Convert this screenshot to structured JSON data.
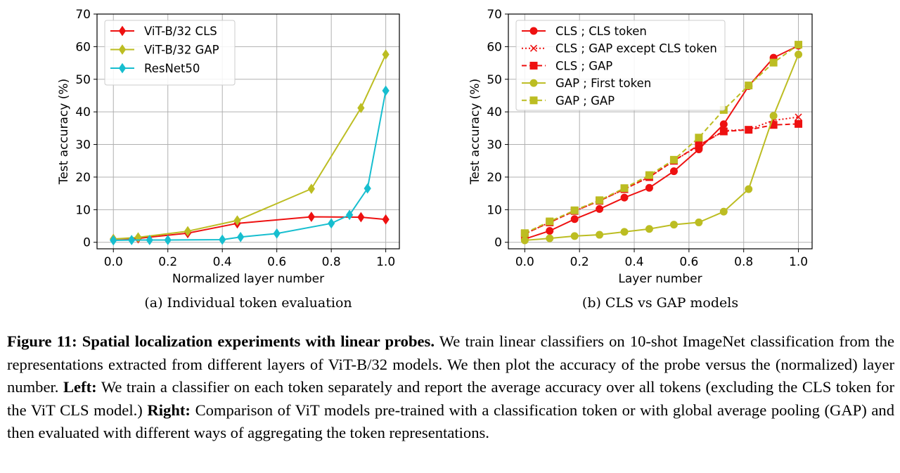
{
  "colors": {
    "red": "#ee1111",
    "olive": "#bcbd22",
    "cyan": "#17becf",
    "grid": "#b0b0b0",
    "axis": "#000000"
  },
  "chart_data": [
    {
      "type": "line",
      "subcaption": "(a) Individual token evaluation",
      "xlabel": "Normalized layer number",
      "ylabel": "Test accuracy (%)",
      "xlim": [
        -0.06,
        1.05
      ],
      "ylim": [
        -2,
        70
      ],
      "xticks": [
        0.0,
        0.2,
        0.4,
        0.6,
        0.8,
        1.0
      ],
      "xtick_labels": [
        "0.0",
        "0.2",
        "0.4",
        "0.6",
        "0.8",
        "1.0"
      ],
      "yticks": [
        0,
        10,
        20,
        30,
        40,
        50,
        60,
        70
      ],
      "ytick_labels": [
        "0",
        "10",
        "20",
        "30",
        "40",
        "50",
        "60",
        "70"
      ],
      "grid": true,
      "legend_position": "top-left",
      "series": [
        {
          "name": "ViT-B/32 CLS",
          "color": "#ee1111",
          "marker": "diamond",
          "dash": "solid",
          "x": [
            0.0,
            0.091,
            0.273,
            0.455,
            0.727,
            0.909,
            1.0
          ],
          "y": [
            1.0,
            1.2,
            2.8,
            5.8,
            7.8,
            7.7,
            7.0
          ]
        },
        {
          "name": "ViT-B/32 GAP",
          "color": "#bcbd22",
          "marker": "diamond",
          "dash": "solid",
          "x": [
            0.0,
            0.091,
            0.273,
            0.455,
            0.727,
            0.909,
            1.0
          ],
          "y": [
            1.0,
            1.5,
            3.4,
            6.7,
            16.4,
            41.2,
            57.6
          ]
        },
        {
          "name": "ResNet50",
          "color": "#17becf",
          "marker": "diamond",
          "dash": "solid",
          "x": [
            0.0,
            0.067,
            0.133,
            0.2,
            0.4,
            0.467,
            0.6,
            0.8,
            0.867,
            0.933,
            1.0
          ],
          "y": [
            0.6,
            0.7,
            0.7,
            0.7,
            0.8,
            1.6,
            2.7,
            5.8,
            8.4,
            16.5,
            46.5
          ]
        }
      ]
    },
    {
      "type": "line",
      "subcaption": "(b) CLS vs GAP models",
      "xlabel": "Layer number",
      "ylabel": "Test accuracy (%)",
      "xlim": [
        -0.06,
        1.05
      ],
      "ylim": [
        -2,
        70
      ],
      "xticks": [
        0.0,
        0.2,
        0.4,
        0.6,
        0.8,
        1.0
      ],
      "xtick_labels": [
        "0.0",
        "0.2",
        "0.4",
        "0.6",
        "0.8",
        "1.0"
      ],
      "yticks": [
        0,
        10,
        20,
        30,
        40,
        50,
        60,
        70
      ],
      "ytick_labels": [
        "0",
        "10",
        "20",
        "30",
        "40",
        "50",
        "60",
        "70"
      ],
      "grid": true,
      "legend_position": "top-left",
      "series": [
        {
          "name": "CLS ; CLS token",
          "color": "#ee1111",
          "marker": "circle",
          "dash": "solid",
          "x": [
            0.0,
            0.091,
            0.182,
            0.273,
            0.364,
            0.455,
            0.545,
            0.636,
            0.727,
            0.818,
            0.909,
            1.0
          ],
          "y": [
            1.0,
            3.5,
            7.1,
            10.2,
            13.7,
            16.7,
            21.8,
            28.5,
            36.2,
            47.9,
            56.6,
            60.3
          ]
        },
        {
          "name": "CLS ; GAP except CLS token",
          "color": "#ee1111",
          "marker": "x",
          "dash": "dotted",
          "x": [
            0.0,
            0.091,
            0.182,
            0.273,
            0.364,
            0.455,
            0.545,
            0.636,
            0.727,
            0.818,
            0.909,
            1.0
          ],
          "y": [
            2.6,
            6.1,
            9.6,
            12.7,
            16.3,
            20.0,
            25.0,
            29.6,
            34.2,
            34.6,
            37.4,
            38.4
          ]
        },
        {
          "name": "CLS ; GAP",
          "color": "#ee1111",
          "marker": "square",
          "dash": "dashed",
          "x": [
            0.0,
            0.091,
            0.182,
            0.273,
            0.364,
            0.455,
            0.545,
            0.636,
            0.727,
            0.818,
            0.909,
            1.0
          ],
          "y": [
            2.6,
            6.1,
            9.6,
            12.7,
            16.3,
            20.0,
            25.0,
            29.8,
            34.0,
            34.5,
            36.0,
            36.3
          ]
        },
        {
          "name": "GAP ; First token",
          "color": "#bcbd22",
          "marker": "circle",
          "dash": "solid",
          "x": [
            0.0,
            0.091,
            0.182,
            0.273,
            0.364,
            0.455,
            0.545,
            0.636,
            0.727,
            0.818,
            0.909,
            1.0
          ],
          "y": [
            0.6,
            1.2,
            1.9,
            2.3,
            3.2,
            4.1,
            5.4,
            6.1,
            9.4,
            16.3,
            38.8,
            57.6
          ]
        },
        {
          "name": "GAP ; GAP",
          "color": "#bcbd22",
          "marker": "square",
          "dash": "dashed",
          "x": [
            0.0,
            0.091,
            0.182,
            0.273,
            0.364,
            0.455,
            0.545,
            0.636,
            0.727,
            0.818,
            0.909,
            1.0
          ],
          "y": [
            2.8,
            6.4,
            9.8,
            12.9,
            16.6,
            20.6,
            25.3,
            32.1,
            40.6,
            48.1,
            55.1,
            60.6
          ]
        }
      ]
    }
  ],
  "caption": {
    "label": "Figure 11: Spatial localization experiments with linear probes.",
    "part1": " We train linear classifiers on 10-shot ImageNet classification from the representations extracted from different layers of ViT-B/32 models. We then plot the accuracy of the probe versus the (normalized) layer number. ",
    "left_label": "Left:",
    "part2": " We train a classifier on each token separately and report the average accuracy over all tokens (excluding the CLS token for the ViT CLS model.) ",
    "right_label": "Right:",
    "part3": " Comparison of ViT models pre-trained with a classification token or with global average pooling (GAP) and then evaluated with different ways of aggregating the token representations."
  }
}
